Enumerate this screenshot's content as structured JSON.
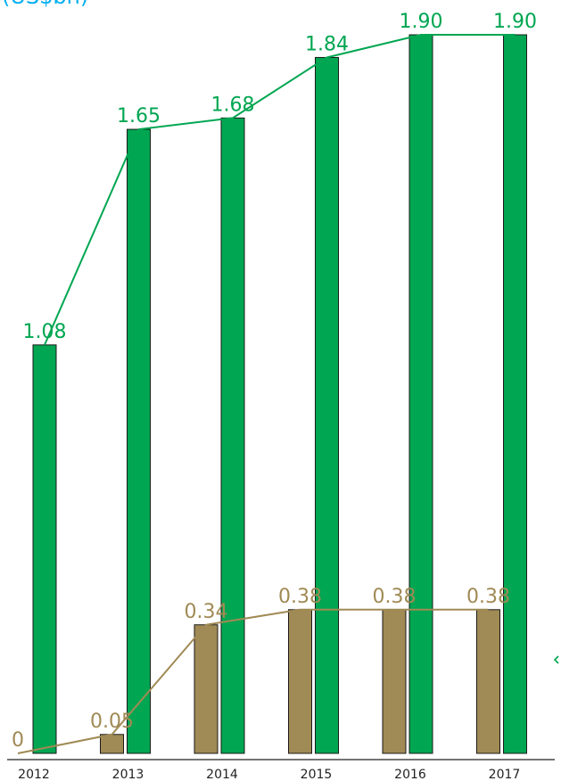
{
  "header": {
    "unit_label": "(US$bn)"
  },
  "colors": {
    "green": "#00a651",
    "green_line": "#00a651",
    "tan": "#a08a55",
    "tan_line": "#a08a55",
    "unit_label": "#00aeef",
    "axis": "#222222",
    "bar_stroke": "#1a1a1a"
  },
  "chart_data": {
    "type": "bar",
    "categories": [
      "2012",
      "2013",
      "2014",
      "2015",
      "2016",
      "2017"
    ],
    "series": [
      {
        "key": "tan",
        "values": [
          0,
          0.05,
          0.34,
          0.38,
          0.38,
          0.38
        ],
        "labels": [
          "0",
          "0.05",
          "0.34",
          "0.38",
          "0.38",
          "0.38"
        ],
        "color": "#a08a55",
        "line_overlay": true
      },
      {
        "key": "green",
        "values": [
          1.08,
          1.65,
          1.68,
          1.84,
          1.9,
          1.9
        ],
        "labels": [
          "1.08",
          "1.65",
          "1.68",
          "1.84",
          "1.90",
          "1.90"
        ],
        "color": "#00a651",
        "line_overlay": true
      }
    ],
    "title": "",
    "xlabel": "",
    "ylabel": "",
    "ylim": [
      0,
      1.9
    ],
    "grid": false,
    "legend": "none"
  }
}
